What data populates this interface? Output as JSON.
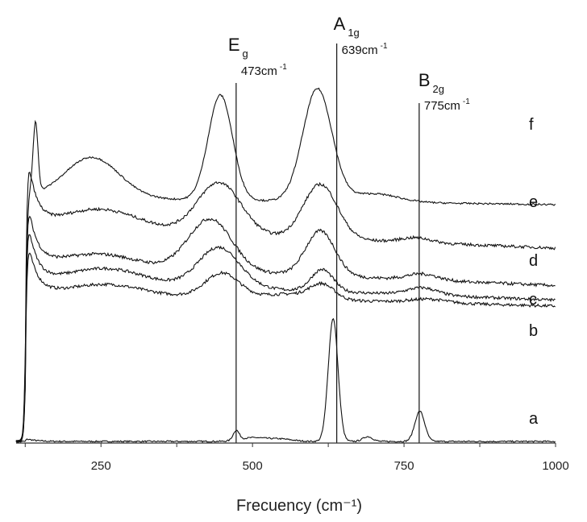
{
  "chart_data": {
    "type": "line",
    "xlabel": "Frecuency (cm⁻¹)",
    "x_ticks": [
      250,
      500,
      750,
      1000
    ],
    "xlim": [
      110,
      1000
    ],
    "y_axis_shown": false,
    "grid": false,
    "reference_lines": [
      {
        "symbol": "E",
        "subscript": "g",
        "frequency": "473cm",
        "unit_sup": "-1",
        "x": 473
      },
      {
        "symbol": "A",
        "subscript": "1g",
        "frequency": "639cm",
        "unit_sup": "-1",
        "x": 639
      },
      {
        "symbol": "B",
        "subscript": "2g",
        "frequency": "775cm",
        "unit_sup": "-1",
        "x": 775
      }
    ],
    "series": [
      {
        "name": "a",
        "baseline": 0,
        "tilt": 0.04,
        "step": 2.5,
        "noise": 0.6,
        "peaks": [
          {
            "x": 473,
            "h": 8,
            "w": 5
          },
          {
            "x": 500,
            "h": 3,
            "w": 20
          },
          {
            "x": 545,
            "h": 2,
            "w": 20
          },
          {
            "x": 633,
            "h": 102,
            "w": 8
          },
          {
            "x": 690,
            "h": 4,
            "w": 8
          },
          {
            "x": 776,
            "h": 25,
            "w": 8
          }
        ]
      },
      {
        "name": "b",
        "baseline": 112,
        "tilt": 12,
        "step": 54,
        "noise": 1.2,
        "peaks": [
          {
            "x": 260,
            "h": 8,
            "w": 55
          },
          {
            "x": 450,
            "h": 20,
            "w": 28
          },
          {
            "x": 560,
            "h": 4,
            "w": 40
          },
          {
            "x": 615,
            "h": 12,
            "w": 20
          },
          {
            "x": 790,
            "h": 3,
            "w": 30
          }
        ]
      },
      {
        "name": "c",
        "baseline": 117,
        "tilt": 17,
        "step": 62,
        "noise": 1.2,
        "peaks": [
          {
            "x": 260,
            "h": 12,
            "w": 60
          },
          {
            "x": 445,
            "h": 33,
            "w": 34
          },
          {
            "x": 615,
            "h": 18,
            "w": 18
          },
          {
            "x": 780,
            "h": 6,
            "w": 25
          }
        ]
      },
      {
        "name": "d",
        "baseline": 129,
        "tilt": 19,
        "step": 64,
        "noise": 1.3,
        "peaks": [
          {
            "x": 250,
            "h": 10,
            "w": 60
          },
          {
            "x": 430,
            "h": 43,
            "w": 36
          },
          {
            "x": 612,
            "h": 37,
            "w": 24
          },
          {
            "x": 780,
            "h": 5,
            "w": 25
          }
        ]
      },
      {
        "name": "e",
        "baseline": 160,
        "tilt": 18,
        "step": 72,
        "noise": 1.2,
        "peaks": [
          {
            "x": 250,
            "h": 17,
            "w": 65
          },
          {
            "x": 445,
            "h": 43,
            "w": 36
          },
          {
            "x": 612,
            "h": 45,
            "w": 28
          },
          {
            "x": 770,
            "h": 4,
            "w": 25
          }
        ]
      },
      {
        "name": "f",
        "baseline": 196,
        "tilt": 6,
        "step": 4,
        "noise": 0.7,
        "peaks": [
          {
            "x": 142,
            "h": 58,
            "w": 4
          },
          {
            "x": 235,
            "h": 34,
            "w": 45
          },
          {
            "x": 447,
            "h": 87,
            "w": 20
          },
          {
            "x": 607,
            "h": 93,
            "w": 24
          },
          {
            "x": 700,
            "h": 7,
            "w": 40
          }
        ]
      }
    ]
  }
}
